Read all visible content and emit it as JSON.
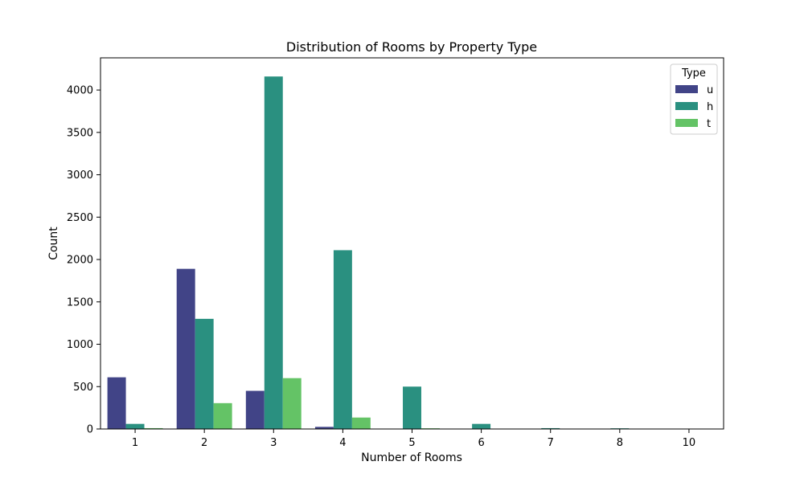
{
  "chart_data": {
    "type": "bar",
    "title": "Distribution of Rooms by Property Type",
    "xlabel": "Number of Rooms",
    "ylabel": "Count",
    "categories": [
      "1",
      "2",
      "3",
      "4",
      "5",
      "6",
      "7",
      "8",
      "10"
    ],
    "ylim": [
      0,
      4380
    ],
    "y_ticks": [
      0,
      500,
      1000,
      1500,
      2000,
      2500,
      3000,
      3500,
      4000
    ],
    "y_tick_labels": [
      "0",
      "500",
      "1000",
      "1500",
      "2000",
      "2500",
      "3000",
      "3500",
      "4000"
    ],
    "grid": false,
    "legend": {
      "title": "Type",
      "placement": "top-right",
      "entries": [
        "u",
        "h",
        "t"
      ]
    },
    "series": [
      {
        "name": "u",
        "color": "#414487",
        "values": [
          610,
          1890,
          450,
          25,
          0,
          0,
          0,
          0,
          0
        ]
      },
      {
        "name": "h",
        "color": "#2a9080",
        "values": [
          60,
          1300,
          4160,
          2110,
          500,
          60,
          10,
          8,
          1
        ]
      },
      {
        "name": "t",
        "color": "#64c366",
        "values": [
          10,
          305,
          600,
          135,
          8,
          0,
          0,
          0,
          0
        ]
      }
    ]
  }
}
